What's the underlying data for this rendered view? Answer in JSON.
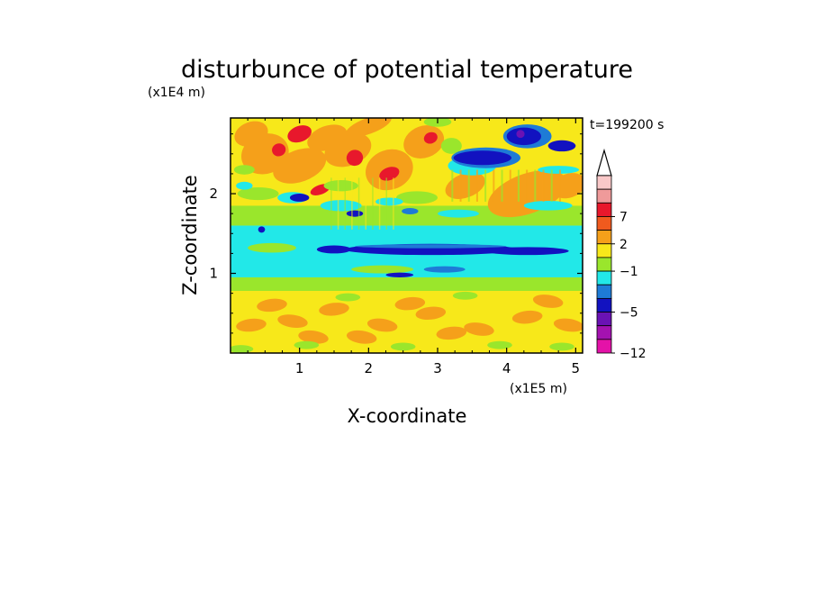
{
  "chart_data": {
    "type": "heatmap",
    "title": "disturbunce of potential temperature",
    "time_label": "t=199200 s",
    "xlabel": "X-coordinate",
    "ylabel": "Z-coordinate",
    "x_unit": "(x1E5 m)",
    "y_unit": "(x1E4 m)",
    "xlim": [
      0,
      5.1
    ],
    "ylim": [
      0,
      2.95
    ],
    "x_ticks": [
      "1",
      "2",
      "3",
      "4",
      "5"
    ],
    "y_ticks": [
      "1",
      "2"
    ],
    "x_tick_values": [
      1,
      2,
      3,
      4,
      5
    ],
    "y_tick_values": [
      1,
      2
    ],
    "colorbar": {
      "levels_top_to_bottom": [
        {
          "color": "#f9c8c8",
          "label": ""
        },
        {
          "color": "#ef9a9a",
          "label": ""
        },
        {
          "color": "#e8182c",
          "label": "7"
        },
        {
          "color": "#f05a1e",
          "label": ""
        },
        {
          "color": "#f5a01a",
          "label": "2"
        },
        {
          "color": "#f7e81a",
          "label": ""
        },
        {
          "color": "#9ae62c",
          "label": "−1"
        },
        {
          "color": "#22e8e8",
          "label": ""
        },
        {
          "color": "#1e7bd6",
          "label": ""
        },
        {
          "color": "#1212c0",
          "label": "−5"
        },
        {
          "color": "#6a12b4",
          "label": ""
        },
        {
          "color": "#a412b0",
          "label": ""
        },
        {
          "color": "#e412a8",
          "label": "−12"
        }
      ]
    },
    "field_bands": [
      {
        "z": [
          0.0,
          0.75
        ],
        "level": "yellow-orange"
      },
      {
        "z": [
          0.75,
          0.95
        ],
        "level": "green"
      },
      {
        "z": [
          0.95,
          1.55
        ],
        "level": "cyan"
      },
      {
        "z": [
          1.25,
          1.35
        ],
        "level": "dark-blue"
      },
      {
        "z": [
          1.55,
          1.85
        ],
        "level": "green-cyan"
      },
      {
        "z": [
          1.85,
          2.95
        ],
        "level": "orange-red"
      }
    ],
    "features": [
      {
        "x": 1.0,
        "z": 2.75,
        "level": "red"
      },
      {
        "x": 0.9,
        "z": 1.95,
        "level": "dark-blue"
      },
      {
        "x": 4.2,
        "z": 2.7,
        "level": "purple"
      },
      {
        "x": 3.7,
        "z": 2.45,
        "level": "dark-blue"
      },
      {
        "x": 4.3,
        "z": 2.0,
        "level": "orange"
      }
    ]
  },
  "colors": {
    "red": "#e8182c",
    "orange": "#f5a01a",
    "yellow": "#f7e81a",
    "green": "#9ae62c",
    "cyan": "#22e8e8",
    "blue": "#1e7bd6",
    "dark_blue": "#1212c0",
    "purple": "#6a12b4"
  }
}
